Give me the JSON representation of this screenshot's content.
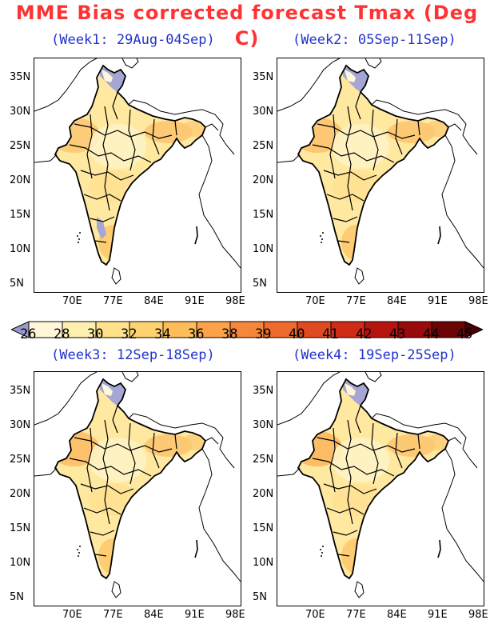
{
  "title": "MME Bias corrected forecast Tmax (Deg C)",
  "colorbar": {
    "levels": [
      "26",
      "28",
      "30",
      "32",
      "34",
      "36",
      "38",
      "39",
      "40",
      "41",
      "42",
      "43",
      "44",
      "45"
    ],
    "colors": [
      "#9999cc",
      "#fff7d9",
      "#fff0b0",
      "#ffe28a",
      "#ffd271",
      "#ffbd5a",
      "#fca34a",
      "#f5863a",
      "#ee6a2d",
      "#e04a20",
      "#cf2b16",
      "#b8140f",
      "#990a0a",
      "#6b0505",
      "#4a0000"
    ]
  },
  "axes": {
    "x_ticks": [
      "70E",
      "77E",
      "84E",
      "91E",
      "98E"
    ],
    "y_ticks": [
      "35N",
      "30N",
      "25N",
      "20N",
      "15N",
      "10N",
      "5N"
    ]
  },
  "panels": [
    {
      "title": "(Week1: 29Aug-04Sep)"
    },
    {
      "title": "(Week2: 05Sep-11Sep)"
    },
    {
      "title": "(Week3: 12Sep-18Sep)"
    },
    {
      "title": "(Week4: 19Sep-25Sep)"
    }
  ]
}
